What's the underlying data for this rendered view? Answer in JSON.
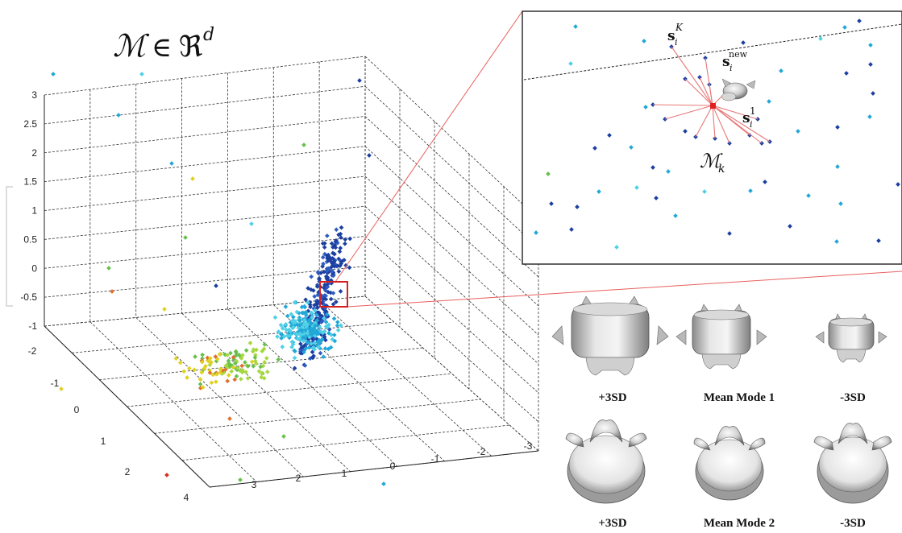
{
  "title": {
    "manifold": "ℳ",
    "in": "∈",
    "space": "ℜ",
    "dim": "d"
  },
  "axes": {
    "z_ticks": [
      "3",
      "2.5",
      "2",
      "1.5",
      "1",
      "0.5",
      "0",
      "-0.5",
      "-1"
    ],
    "left_ticks": [
      "-2",
      "-1",
      "0",
      "1",
      "2",
      "4"
    ],
    "right_ticks": [
      "3",
      "2",
      "1",
      "0",
      "-1",
      "-2",
      "-3"
    ]
  },
  "inset": {
    "sK": "s",
    "sK_sub": "i",
    "sK_sup": "K",
    "snew": "s",
    "snew_sub": "i",
    "snew_sup": "new",
    "s1": "s",
    "s1_sub": "i",
    "s1_sup": "1",
    "mk": "ℳ",
    "mk_sub": "k"
  },
  "modes": {
    "row1": [
      "+3SD",
      "Mean Mode 1",
      "-3SD"
    ],
    "row2": [
      "+3SD",
      "Mean Mode 2",
      "-3SD"
    ]
  },
  "colors": {
    "highlight": "#e02a2a",
    "dark_blue": "#1c3fa0",
    "cyan": "#22a8d8",
    "light_cyan": "#4fd0e6",
    "green": "#68c04a",
    "yellow": "#e0d020",
    "orange": "#e07030",
    "red": "#d83020"
  }
}
